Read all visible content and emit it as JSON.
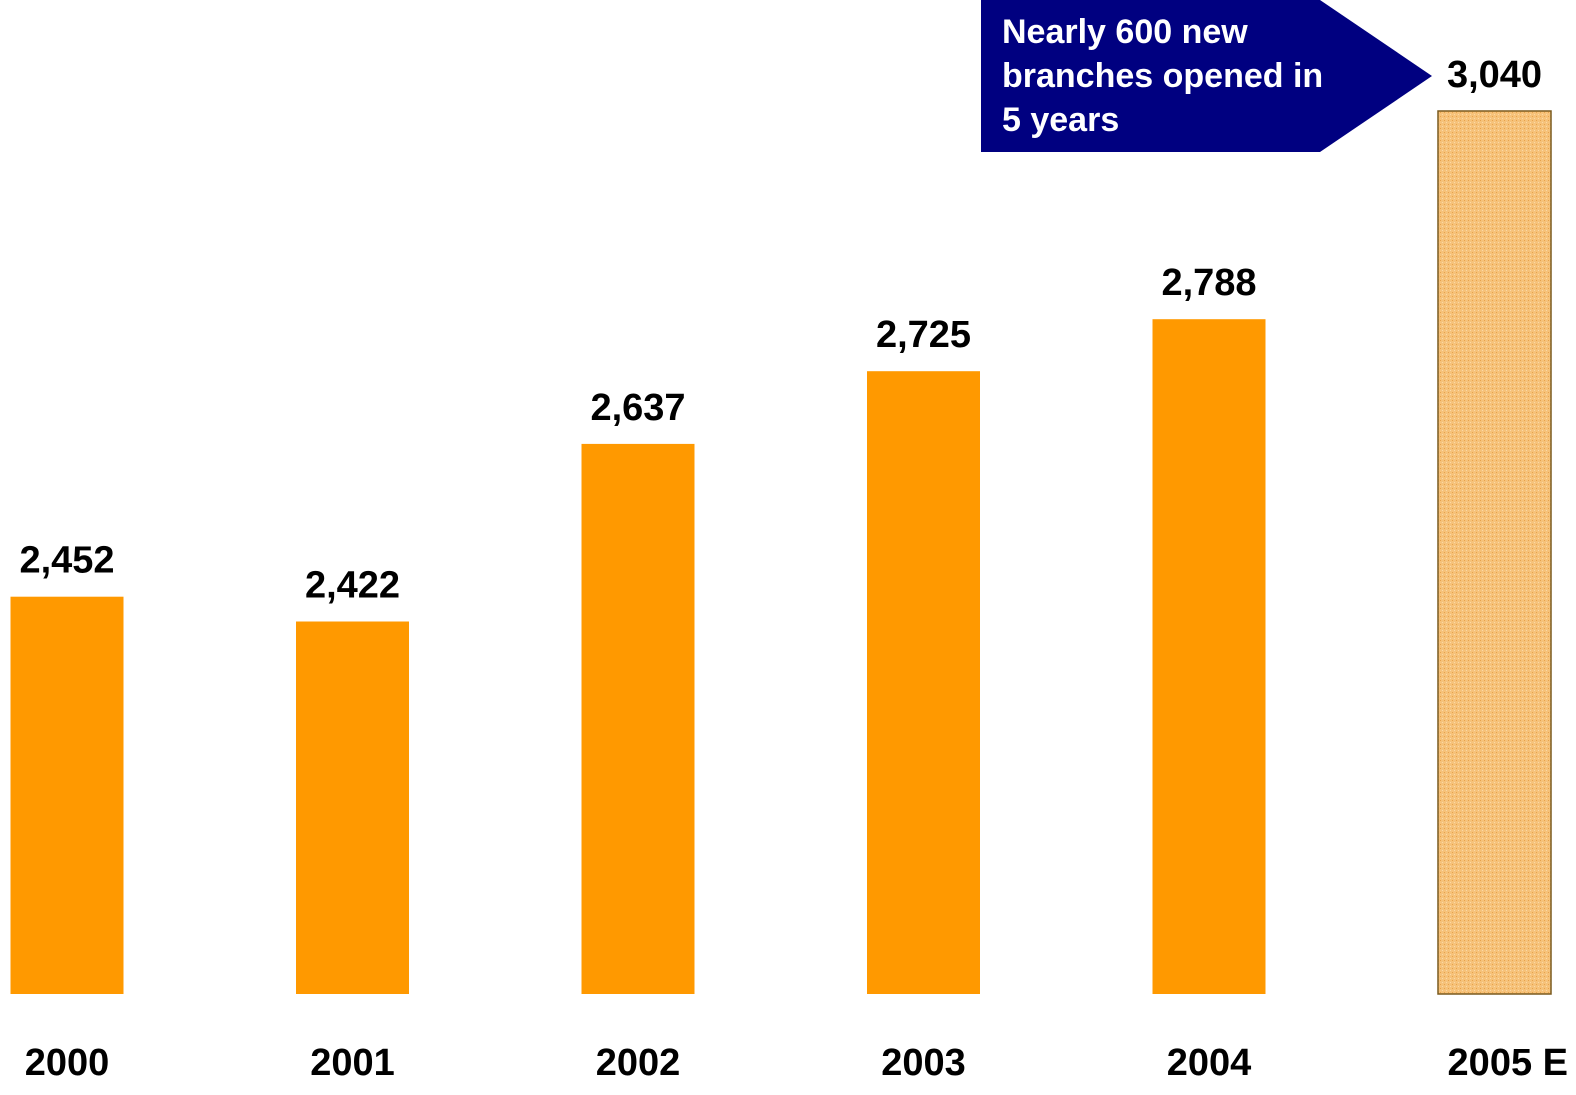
{
  "chart_data": {
    "type": "bar",
    "categories": [
      "2000",
      "2001",
      "2002",
      "2003",
      "2004",
      "2005 E"
    ],
    "values": [
      2452,
      2422,
      2637,
      2725,
      2788,
      3040
    ],
    "value_labels": [
      "2,452",
      "2,422",
      "2,637",
      "2,725",
      "2,788",
      "3,040"
    ],
    "estimate_categories": [
      "2005 E"
    ],
    "ylim": [
      1971,
      3040
    ],
    "grid": false,
    "colors": {
      "bar": "#FF9900",
      "estimate_bar_fill": "#F6C27A",
      "estimate_bar_stroke": "#7A5A1E",
      "label": "#000000"
    }
  },
  "callout": {
    "lines": [
      "Nearly 600 new",
      "branches opened in",
      "5 years"
    ],
    "color": "#000080",
    "text_color": "#FFFFFF"
  }
}
